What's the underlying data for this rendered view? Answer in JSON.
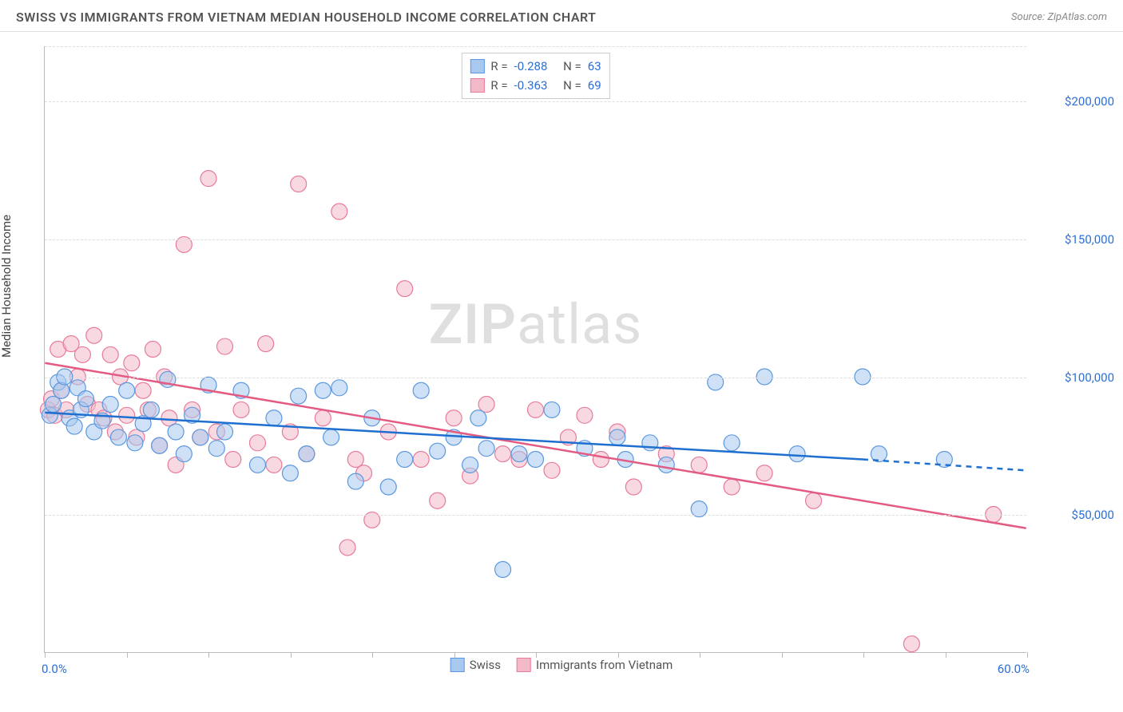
{
  "header": {
    "title": "SWISS VS IMMIGRANTS FROM VIETNAM MEDIAN HOUSEHOLD INCOME CORRELATION CHART",
    "source_prefix": "Source: ",
    "source_name": "ZipAtlas.com"
  },
  "watermark": {
    "left": "ZIP",
    "right": "atlas"
  },
  "chart": {
    "type": "scatter",
    "ylabel": "Median Household Income",
    "background_color": "#ffffff",
    "grid_color": "#dddddd",
    "axis_color": "#bbbbbb",
    "text_color": "#555555",
    "value_color": "#2c6fd8",
    "title_fontsize": 16,
    "label_fontsize": 15,
    "tick_fontsize": 15,
    "marker_radius": 10,
    "marker_opacity": 0.55,
    "line_width": 2.5,
    "xlim": [
      0,
      60
    ],
    "ylim": [
      0,
      220000
    ],
    "x_tick_positions": [
      0,
      5,
      10,
      15,
      20,
      25,
      30,
      35,
      40,
      45,
      50,
      55,
      60
    ],
    "x_start_label": "0.0%",
    "x_end_label": "60.0%",
    "y_gridlines": [
      50000,
      100000,
      150000,
      200000,
      220000
    ],
    "y_tick_labels": {
      "50000": "$50,000",
      "100000": "$100,000",
      "150000": "$150,000",
      "200000": "$200,000"
    },
    "series": [
      {
        "key": "swiss",
        "label": "Swiss",
        "fill": "#a8c8ef",
        "stroke": "#5b98df",
        "line_color": "#1f6fd0",
        "R": "-0.288",
        "N": "63",
        "trend": {
          "x1": 0,
          "y1": 87000,
          "x2": 50,
          "y2": 70000,
          "dash_to_x": 60,
          "dash_to_y": 66000
        },
        "points": [
          [
            0.3,
            86000
          ],
          [
            0.5,
            90000
          ],
          [
            0.8,
            98000
          ],
          [
            1.0,
            95000
          ],
          [
            1.2,
            100000
          ],
          [
            1.5,
            85000
          ],
          [
            1.8,
            82000
          ],
          [
            2.0,
            96000
          ],
          [
            2.2,
            88000
          ],
          [
            2.5,
            92000
          ],
          [
            3.0,
            80000
          ],
          [
            3.5,
            84000
          ],
          [
            4.0,
            90000
          ],
          [
            4.5,
            78000
          ],
          [
            5.0,
            95000
          ],
          [
            5.5,
            76000
          ],
          [
            6.0,
            83000
          ],
          [
            6.5,
            88000
          ],
          [
            7.0,
            75000
          ],
          [
            7.5,
            99000
          ],
          [
            8.0,
            80000
          ],
          [
            8.5,
            72000
          ],
          [
            9.0,
            86000
          ],
          [
            9.5,
            78000
          ],
          [
            10.0,
            97000
          ],
          [
            10.5,
            74000
          ],
          [
            11.0,
            80000
          ],
          [
            12.0,
            95000
          ],
          [
            13.0,
            68000
          ],
          [
            14.0,
            85000
          ],
          [
            15.0,
            65000
          ],
          [
            15.5,
            93000
          ],
          [
            16.0,
            72000
          ],
          [
            17.0,
            95000
          ],
          [
            17.5,
            78000
          ],
          [
            18.0,
            96000
          ],
          [
            19.0,
            62000
          ],
          [
            20.0,
            85000
          ],
          [
            21.0,
            60000
          ],
          [
            22.0,
            70000
          ],
          [
            23.0,
            95000
          ],
          [
            24.0,
            73000
          ],
          [
            25.0,
            78000
          ],
          [
            26.0,
            68000
          ],
          [
            26.5,
            85000
          ],
          [
            27.0,
            74000
          ],
          [
            28.0,
            30000
          ],
          [
            29.0,
            72000
          ],
          [
            30.0,
            70000
          ],
          [
            31.0,
            88000
          ],
          [
            33.0,
            74000
          ],
          [
            35.0,
            78000
          ],
          [
            35.5,
            70000
          ],
          [
            37.0,
            76000
          ],
          [
            38.0,
            68000
          ],
          [
            40.0,
            52000
          ],
          [
            41.0,
            98000
          ],
          [
            42.0,
            76000
          ],
          [
            44.0,
            100000
          ],
          [
            46.0,
            72000
          ],
          [
            50.0,
            100000
          ],
          [
            51.0,
            72000
          ],
          [
            55.0,
            70000
          ]
        ]
      },
      {
        "key": "vietnam",
        "label": "Immigrants from Vietnam",
        "fill": "#f4b9c8",
        "stroke": "#e77b99",
        "line_color": "#e35a82",
        "R": "-0.363",
        "N": "69",
        "trend": {
          "x1": 0,
          "y1": 105000,
          "x2": 60,
          "y2": 45000
        },
        "points": [
          [
            0.2,
            88000
          ],
          [
            0.4,
            92000
          ],
          [
            0.6,
            86000
          ],
          [
            0.8,
            110000
          ],
          [
            1.0,
            95000
          ],
          [
            1.3,
            88000
          ],
          [
            1.6,
            112000
          ],
          [
            2.0,
            100000
          ],
          [
            2.3,
            108000
          ],
          [
            2.6,
            90000
          ],
          [
            3.0,
            115000
          ],
          [
            3.3,
            88000
          ],
          [
            3.6,
            85000
          ],
          [
            4.0,
            108000
          ],
          [
            4.3,
            80000
          ],
          [
            4.6,
            100000
          ],
          [
            5.0,
            86000
          ],
          [
            5.3,
            105000
          ],
          [
            5.6,
            78000
          ],
          [
            6.0,
            95000
          ],
          [
            6.3,
            88000
          ],
          [
            6.6,
            110000
          ],
          [
            7.0,
            75000
          ],
          [
            7.3,
            100000
          ],
          [
            7.6,
            85000
          ],
          [
            8.0,
            68000
          ],
          [
            8.5,
            148000
          ],
          [
            9.0,
            88000
          ],
          [
            9.5,
            78000
          ],
          [
            10.0,
            172000
          ],
          [
            10.5,
            80000
          ],
          [
            11.0,
            111000
          ],
          [
            11.5,
            70000
          ],
          [
            12.0,
            88000
          ],
          [
            13.0,
            76000
          ],
          [
            13.5,
            112000
          ],
          [
            14.0,
            68000
          ],
          [
            15.0,
            80000
          ],
          [
            15.5,
            170000
          ],
          [
            16.0,
            72000
          ],
          [
            17.0,
            85000
          ],
          [
            18.0,
            160000
          ],
          [
            18.5,
            38000
          ],
          [
            19.0,
            70000
          ],
          [
            19.5,
            65000
          ],
          [
            20.0,
            48000
          ],
          [
            21.0,
            80000
          ],
          [
            22.0,
            132000
          ],
          [
            23.0,
            70000
          ],
          [
            24.0,
            55000
          ],
          [
            25.0,
            85000
          ],
          [
            26.0,
            64000
          ],
          [
            27.0,
            90000
          ],
          [
            28.0,
            72000
          ],
          [
            29.0,
            70000
          ],
          [
            30.0,
            88000
          ],
          [
            31.0,
            66000
          ],
          [
            32.0,
            78000
          ],
          [
            33.0,
            86000
          ],
          [
            34.0,
            70000
          ],
          [
            35.0,
            80000
          ],
          [
            36.0,
            60000
          ],
          [
            38.0,
            72000
          ],
          [
            40.0,
            68000
          ],
          [
            42.0,
            60000
          ],
          [
            44.0,
            65000
          ],
          [
            47.0,
            55000
          ],
          [
            53.0,
            3000
          ],
          [
            58.0,
            50000
          ]
        ]
      }
    ]
  },
  "legend_top": {
    "R_label": "R = ",
    "N_label": "N = "
  },
  "footer_legend": {
    "swiss": "Swiss",
    "vietnam": "Immigrants from Vietnam"
  }
}
